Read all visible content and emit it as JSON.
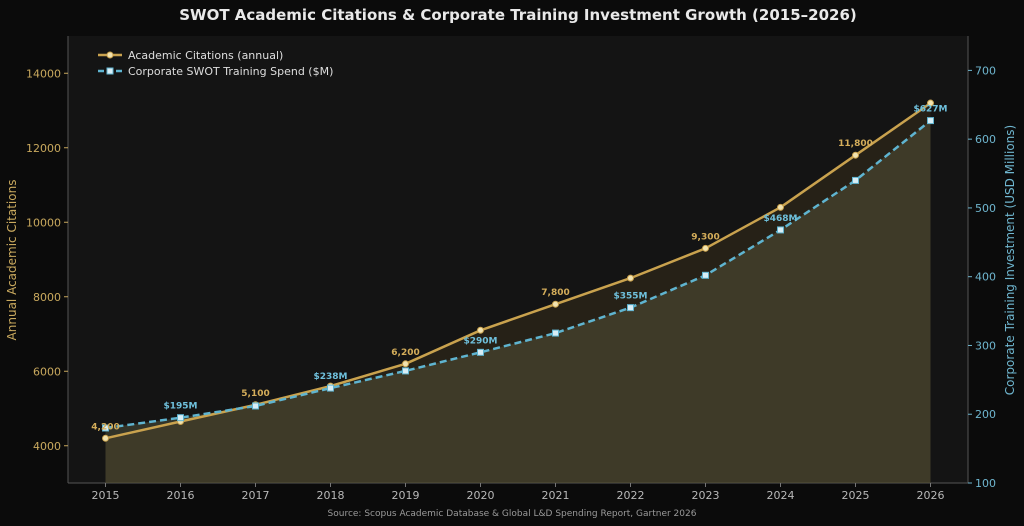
{
  "chart_data": {
    "type": "line",
    "title": "SWOT Academic Citations & Corporate Training Investment Growth (2015–2026)",
    "x": [
      2015,
      2016,
      2017,
      2018,
      2019,
      2020,
      2021,
      2022,
      2023,
      2024,
      2025,
      2026
    ],
    "ylabel_left": "Annual Academic Citations",
    "ylabel_right": "Corporate Training Investment (USD Millions)",
    "ylim_left": [
      3000,
      15000
    ],
    "ylim_right": [
      100,
      750
    ],
    "yticks_left": [
      4000,
      6000,
      8000,
      10000,
      12000,
      14000
    ],
    "yticks_right": [
      100,
      200,
      300,
      400,
      500,
      600,
      700
    ],
    "grid": false,
    "legend_position": "top-left",
    "series": [
      {
        "name": "Academic Citations (annual)",
        "axis": "left",
        "color": "#c9a24e",
        "marker": "circle",
        "values": [
          4200,
          4650,
          5100,
          5600,
          6200,
          7100,
          7800,
          8500,
          9300,
          10400,
          11800,
          13200
        ],
        "labels": [
          {
            "index": 0,
            "text": "4,200"
          },
          {
            "index": 2,
            "text": "5,100"
          },
          {
            "index": 4,
            "text": "6,200"
          },
          {
            "index": 6,
            "text": "7,800"
          },
          {
            "index": 8,
            "text": "9,300"
          },
          {
            "index": 10,
            "text": "11,800"
          }
        ]
      },
      {
        "name": "Corporate SWOT Training Spend ($M)",
        "axis": "right",
        "color": "#5fb4d0",
        "marker": "square",
        "values": [
          180,
          195,
          212,
          238,
          263,
          290,
          318,
          355,
          402,
          468,
          540,
          627
        ],
        "labels": [
          {
            "index": 1,
            "text": "$195M"
          },
          {
            "index": 3,
            "text": "$238M"
          },
          {
            "index": 5,
            "text": "$290M"
          },
          {
            "index": 7,
            "text": "$355M"
          },
          {
            "index": 9,
            "text": "$468M"
          },
          {
            "index": 11,
            "text": "$627M"
          }
        ]
      }
    ],
    "source": "Source: Scopus Academic Database & Global L&D Spending Report, Gartner 2026"
  }
}
